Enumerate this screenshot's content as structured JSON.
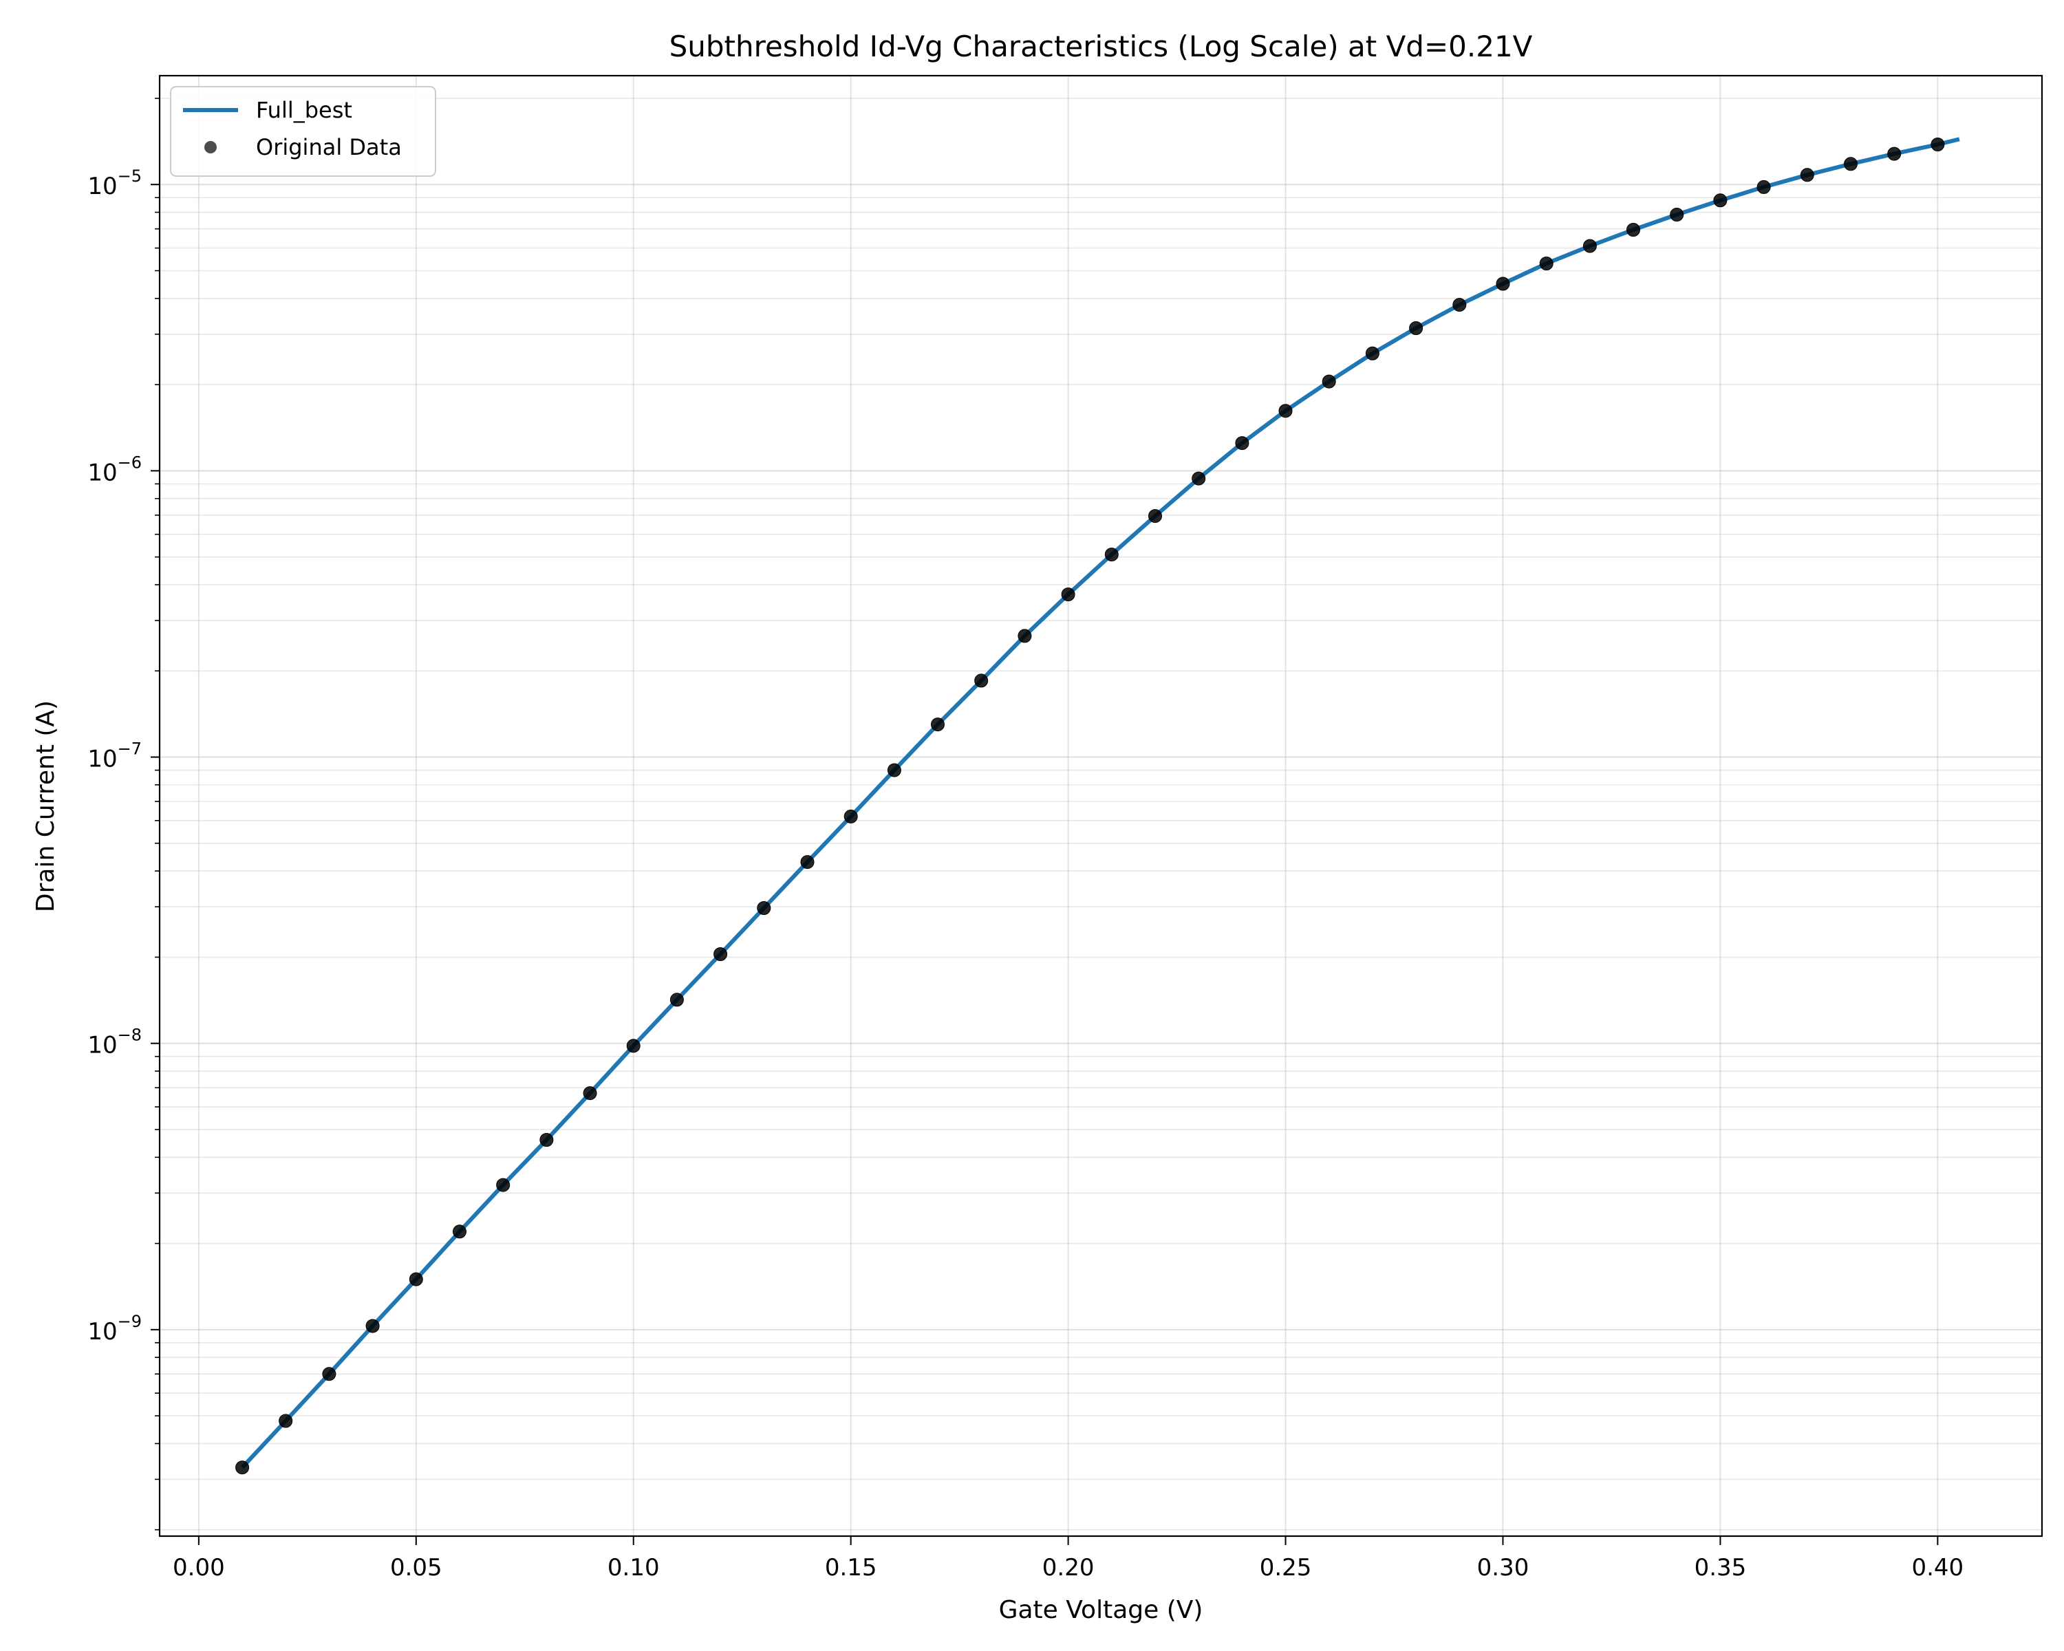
{
  "chart_data": {
    "type": "line",
    "title": "Subthreshold Id-Vg Characteristics (Log Scale) at Vd=0.21V",
    "xlabel": "Gate Voltage (V)",
    "ylabel": "Drain Current (A)",
    "yscale": "log",
    "xlim": [
      -0.009,
      0.424
    ],
    "ylim": [
      1.9e-10,
      2.4e-05
    ],
    "x_ticks": [
      "0.00",
      "0.05",
      "0.10",
      "0.15",
      "0.20",
      "0.25",
      "0.30",
      "0.35",
      "0.40"
    ],
    "y_tick_exponents": [
      "-9",
      "-8",
      "-7",
      "-6",
      "-5"
    ],
    "grid": true,
    "legend": "top-left",
    "series": [
      {
        "name": "Full_best",
        "kind": "line",
        "color": "#1f77b4",
        "x": [
          0.01,
          0.02,
          0.03,
          0.04,
          0.05,
          0.06,
          0.07,
          0.08,
          0.09,
          0.1,
          0.11,
          0.12,
          0.13,
          0.14,
          0.15,
          0.16,
          0.17,
          0.18,
          0.19,
          0.2,
          0.21,
          0.22,
          0.23,
          0.24,
          0.25,
          0.26,
          0.27,
          0.28,
          0.29,
          0.3,
          0.31,
          0.32,
          0.33,
          0.34,
          0.35,
          0.36,
          0.37,
          0.38,
          0.39,
          0.4,
          0.405
        ],
        "y": [
          3.3e-10,
          4.8e-10,
          7e-10,
          1.03e-09,
          1.5e-09,
          2.2e-09,
          3.2e-09,
          4.6e-09,
          6.7e-09,
          9.8e-09,
          1.42e-08,
          2.05e-08,
          2.97e-08,
          4.3e-08,
          6.2e-08,
          9e-08,
          1.3e-07,
          1.85e-07,
          2.65e-07,
          3.7e-07,
          5.1e-07,
          6.95e-07,
          9.4e-07,
          1.25e-06,
          1.62e-06,
          2.05e-06,
          2.57e-06,
          3.15e-06,
          3.8e-06,
          4.5e-06,
          5.3e-06,
          6.1e-06,
          6.95e-06,
          7.85e-06,
          8.8e-06,
          9.8e-06,
          1.08e-05,
          1.18e-05,
          1.28e-05,
          1.38e-05,
          1.44e-05
        ]
      },
      {
        "name": "Original Data",
        "kind": "scatter",
        "color": "#000000",
        "x": [
          0.01,
          0.02,
          0.03,
          0.04,
          0.05,
          0.06,
          0.07,
          0.08,
          0.09,
          0.1,
          0.11,
          0.12,
          0.13,
          0.14,
          0.15,
          0.16,
          0.17,
          0.18,
          0.19,
          0.2,
          0.21,
          0.22,
          0.23,
          0.24,
          0.25,
          0.26,
          0.27,
          0.28,
          0.29,
          0.3,
          0.31,
          0.32,
          0.33,
          0.34,
          0.35,
          0.36,
          0.37,
          0.38,
          0.39,
          0.4
        ],
        "y": [
          3.3e-10,
          4.8e-10,
          7e-10,
          1.03e-09,
          1.5e-09,
          2.2e-09,
          3.2e-09,
          4.6e-09,
          6.7e-09,
          9.8e-09,
          1.42e-08,
          2.05e-08,
          2.97e-08,
          4.3e-08,
          6.2e-08,
          9e-08,
          1.3e-07,
          1.85e-07,
          2.65e-07,
          3.7e-07,
          5.1e-07,
          6.95e-07,
          9.4e-07,
          1.25e-06,
          1.62e-06,
          2.05e-06,
          2.57e-06,
          3.15e-06,
          3.8e-06,
          4.5e-06,
          5.3e-06,
          6.1e-06,
          6.95e-06,
          7.85e-06,
          8.8e-06,
          9.8e-06,
          1.08e-05,
          1.18e-05,
          1.28e-05,
          1.38e-05
        ]
      }
    ]
  }
}
